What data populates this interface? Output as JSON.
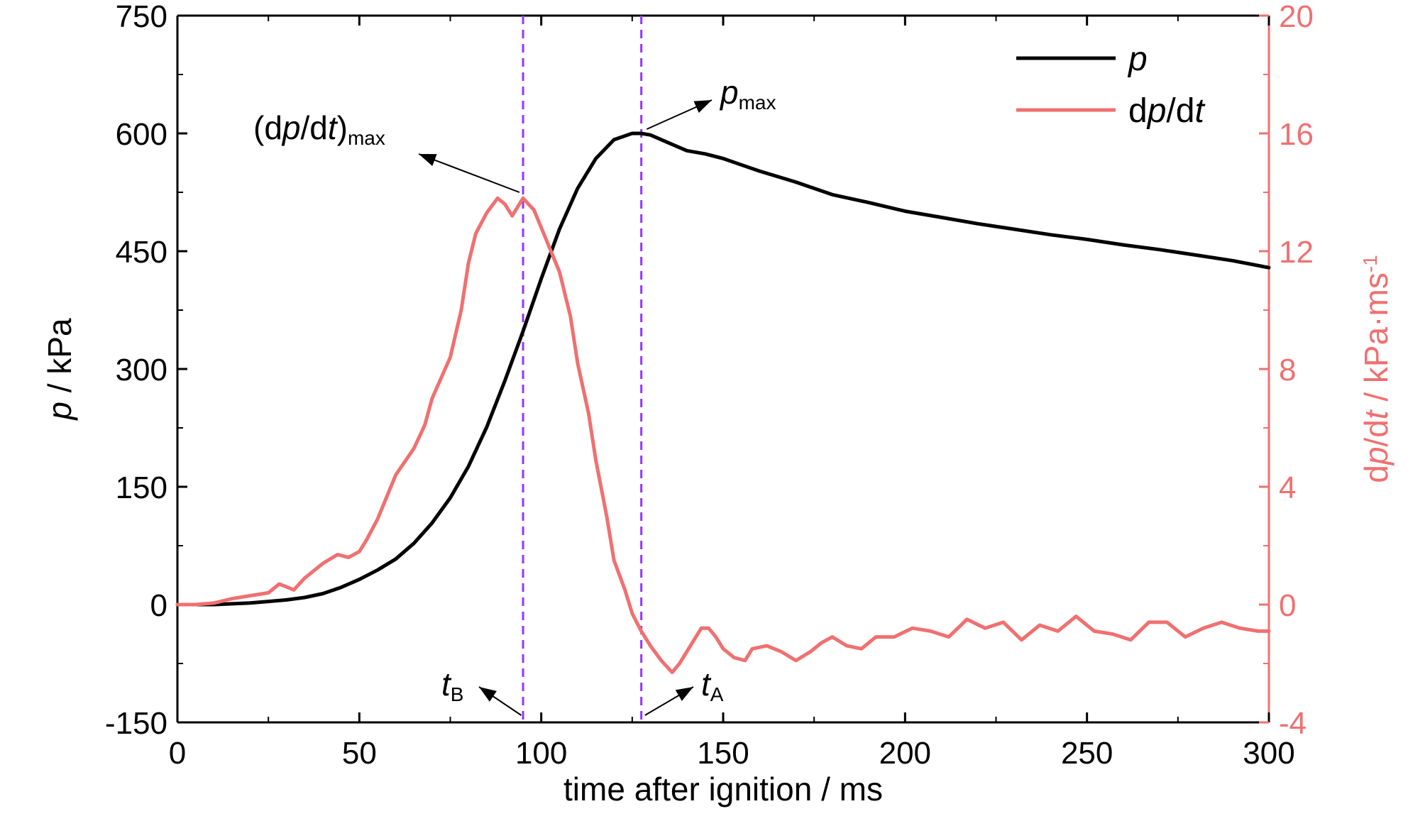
{
  "chart_data": {
    "type": "line",
    "x_axis": {
      "label_prefix": "time after ignition / ms",
      "range": [
        0,
        300
      ],
      "ticks": [
        "0",
        "50",
        "100",
        "150",
        "200",
        "250",
        "300"
      ],
      "minor_step": 25
    },
    "y_left": {
      "label_var": "p",
      "label_unit": " / kPa",
      "range": [
        -150,
        750
      ],
      "ticks": [
        "-150",
        "0",
        "150",
        "300",
        "450",
        "600",
        "750"
      ],
      "minor_step": 75
    },
    "y_right": {
      "label_parts": [
        "d",
        "p",
        "/d",
        "t",
        " / kPa·ms",
        "-1"
      ],
      "range": [
        -4,
        20
      ],
      "ticks": [
        "-4",
        "0",
        "4",
        "8",
        "12",
        "16",
        "20"
      ],
      "minor_step": 2,
      "color": "#f07070"
    },
    "legend": {
      "position": "top-right",
      "entries": [
        {
          "label_parts": [
            "",
            "p",
            "",
            ""
          ],
          "color": "#000000"
        },
        {
          "label_parts": [
            "d",
            "p",
            "/d",
            "t"
          ],
          "color": "#f07070"
        }
      ]
    },
    "vlines": {
      "x": [
        95,
        127.5
      ],
      "color": "#9933ff",
      "style": "dashed"
    },
    "annotations": {
      "dpdt_max": {
        "open": "(d",
        "var": "p",
        "mid": "/d",
        "var2": "t",
        "close": ")",
        "sub": "max"
      },
      "p_max": {
        "var": "p",
        "sub": "max"
      },
      "t_B": {
        "var": "t",
        "sub": "B"
      },
      "t_A": {
        "var": "t",
        "sub": "A"
      }
    },
    "series": [
      {
        "name": "p",
        "axis": "left",
        "color": "#000000",
        "x": [
          0,
          5,
          10,
          15,
          20,
          25,
          30,
          35,
          40,
          45,
          50,
          55,
          60,
          65,
          70,
          75,
          80,
          85,
          90,
          95,
          100,
          105,
          110,
          115,
          120,
          125,
          127.5,
          130,
          135,
          140,
          145,
          150,
          155,
          160,
          170,
          180,
          190,
          200,
          210,
          220,
          230,
          240,
          250,
          260,
          270,
          280,
          290,
          300
        ],
        "y": [
          0,
          0,
          0,
          1,
          2,
          4,
          6,
          9,
          14,
          22,
          32,
          44,
          58,
          78,
          104,
          136,
          176,
          226,
          285,
          348,
          415,
          478,
          530,
          568,
          592,
          600,
          600,
          598,
          588,
          578,
          574,
          568,
          560,
          552,
          538,
          522,
          512,
          501,
          493,
          485,
          478,
          471,
          465,
          458,
          452,
          445,
          438,
          429
        ]
      },
      {
        "name": "dp/dt",
        "axis": "right",
        "color": "#f07070",
        "x": [
          0,
          5,
          10,
          15,
          20,
          25,
          28,
          30,
          32,
          35,
          40,
          44,
          47,
          50,
          52,
          55,
          60,
          65,
          68,
          70,
          75,
          78,
          80,
          82,
          85,
          88,
          90,
          92,
          95,
          98,
          100,
          103,
          105,
          108,
          110,
          113,
          115,
          118,
          120,
          123,
          125,
          127.5,
          130,
          133,
          136,
          138,
          141,
          144,
          146,
          148,
          150,
          153,
          156,
          158,
          162,
          166,
          170,
          174,
          177,
          180,
          184,
          188,
          192,
          197,
          202,
          207,
          212,
          217,
          222,
          227,
          232,
          237,
          242,
          247,
          252,
          257,
          262,
          267,
          272,
          277,
          282,
          287,
          292,
          297,
          300
        ],
        "y": [
          0,
          0,
          0.05,
          0.2,
          0.3,
          0.4,
          0.7,
          0.6,
          0.5,
          0.9,
          1.4,
          1.7,
          1.6,
          1.8,
          2.2,
          2.9,
          4.4,
          5.3,
          6.1,
          7,
          8.4,
          10,
          11.6,
          12.6,
          13.3,
          13.8,
          13.6,
          13.2,
          13.8,
          13.4,
          12.8,
          11.9,
          11.3,
          9.8,
          8.2,
          6.5,
          4.9,
          3,
          1.5,
          0.5,
          -0.3,
          -0.9,
          -1.4,
          -1.9,
          -2.3,
          -2,
          -1.4,
          -0.8,
          -0.8,
          -1.1,
          -1.5,
          -1.8,
          -1.9,
          -1.5,
          -1.4,
          -1.6,
          -1.9,
          -1.6,
          -1.3,
          -1.1,
          -1.4,
          -1.5,
          -1.1,
          -1.1,
          -0.8,
          -0.9,
          -1.1,
          -0.5,
          -0.8,
          -0.6,
          -1.2,
          -0.7,
          -0.9,
          -0.4,
          -0.9,
          -1,
          -1.2,
          -0.6,
          -0.6,
          -1.1,
          -0.8,
          -0.6,
          -0.8,
          -0.9,
          -0.9
        ]
      }
    ]
  }
}
